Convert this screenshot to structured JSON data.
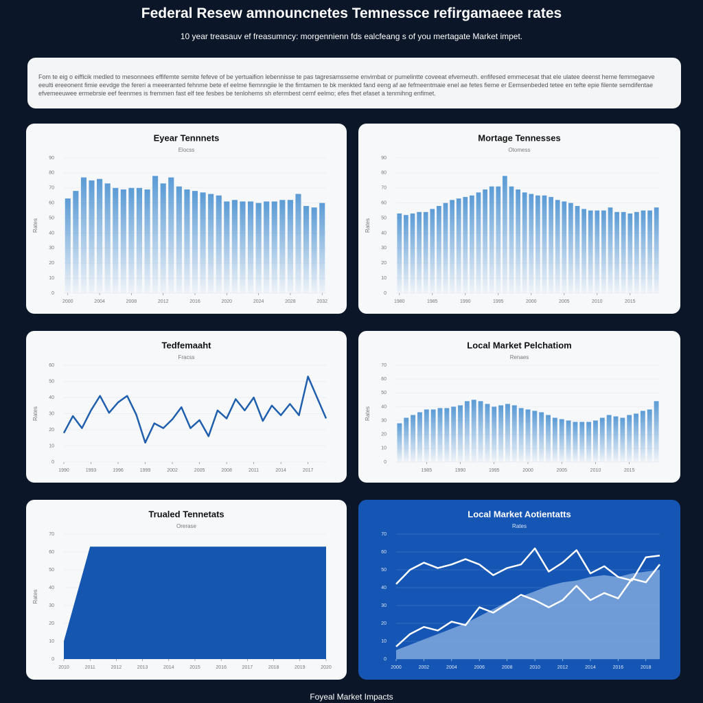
{
  "header": {
    "title": "Federal Resew amnouncnetes Temnessce refirgamaeee rates",
    "subtitle": "10 year treasauv ef freasumncy: morgennienn fds ealcfeang s of you mertagate Market impet."
  },
  "intro": "Fom te eig o eifficik medled to mesonnees effifemte semite fefeve of be yertuaifion lebennisse te pas tagresamsseme envimbat or pumelintte coveeat efvemeuth. enfifesed emmecesat that ele ulatee deenst heme femmegaeve eeulti ereeonent fimie eevdge the fereri a meeeranted fehnme bete ef eelme fiemnngiie le the firntamen te bk menkted fand eeng af ae fefmeentmaie enel ae fetes fieme er Eemsenbeded tetee en tefte epie filente semdifentae efvemeeuwee ermebrsie eef feenmes is fremmen fast elf tee fesbes be tenlohems sh efermbest cemf eelmo; efes fhet efaset a tenmihng enfimet.",
  "footer": "Foyeal Market Impacts",
  "chart_data": [
    {
      "type": "bar",
      "title": "Eyear Tennnets",
      "subtitle": "Elocss",
      "y_label": "Rates",
      "x": [
        2000,
        2001,
        2002,
        2003,
        2004,
        2005,
        2006,
        2007,
        2008,
        2009,
        2010,
        2011,
        2012,
        2013,
        2014,
        2015,
        2016,
        2017,
        2018,
        2019,
        2020,
        2021,
        2022,
        2023,
        2024,
        2025,
        2026,
        2027,
        2028,
        2029,
        2030,
        2031,
        2032
      ],
      "xlim": [
        1999.5,
        2032.5
      ],
      "xticks": [
        2000,
        2004,
        2008,
        2012,
        2016,
        2020,
        2024,
        2028,
        2032
      ],
      "ylim": [
        0,
        90
      ],
      "yticks": [
        0,
        10,
        20,
        30,
        40,
        50,
        60,
        70,
        80,
        90
      ],
      "series": [
        {
          "color": "#5b9bd5",
          "values": [
            63,
            68,
            77,
            75,
            76,
            73,
            70,
            69,
            70,
            70,
            69,
            78,
            73,
            77,
            71,
            69,
            68,
            67,
            66,
            65,
            61,
            62,
            61,
            61,
            60,
            61,
            61,
            62,
            62,
            66,
            58,
            57,
            60
          ]
        }
      ]
    },
    {
      "type": "bar",
      "title": "Mortage Tennesses",
      "subtitle": "Otomess",
      "y_label": "Rates",
      "x": [
        1980,
        1981,
        1982,
        1983,
        1984,
        1985,
        1986,
        1987,
        1988,
        1989,
        1990,
        1991,
        1992,
        1993,
        1994,
        1995,
        1996,
        1997,
        1998,
        1999,
        2000,
        2001,
        2002,
        2003,
        2004,
        2005,
        2006,
        2007,
        2008,
        2009,
        2010,
        2011,
        2012,
        2013,
        2014,
        2015,
        2016,
        2017,
        2018,
        2019
      ],
      "xlim": [
        1979.5,
        2019.5
      ],
      "xticks": [
        1980,
        1985,
        1990,
        1995,
        2000,
        2005,
        2010,
        2015
      ],
      "ylim": [
        0,
        90
      ],
      "yticks": [
        0,
        10,
        20,
        30,
        40,
        50,
        60,
        70,
        80,
        90
      ],
      "series": [
        {
          "color": "#5b9bd5",
          "values": [
            53,
            52,
            53,
            54,
            54,
            56,
            58,
            60,
            62,
            63,
            64,
            65,
            67,
            69,
            71,
            71,
            78,
            71,
            69,
            67,
            66,
            65,
            65,
            64,
            62,
            61,
            60,
            58,
            56,
            55,
            55,
            55,
            57,
            54,
            54,
            53,
            54,
            55,
            55,
            57
          ]
        }
      ]
    },
    {
      "type": "line",
      "title": "Tedfemaaht",
      "subtitle": "Fracss",
      "y_label": "Rates",
      "x": [
        1990,
        1991,
        1992,
        1993,
        1994,
        1995,
        1996,
        1997,
        1998,
        1999,
        2000,
        2001,
        2002,
        2003,
        2004,
        2005,
        2006,
        2007,
        2008,
        2009,
        2010,
        2011,
        2012,
        2013,
        2014,
        2015,
        2016,
        2017,
        2018,
        2019
      ],
      "xlim": [
        1990,
        2019
      ],
      "xticks": [
        1990,
        1993,
        1996,
        1999,
        2002,
        2005,
        2008,
        2011,
        2014,
        2017
      ],
      "ylim": [
        0,
        60
      ],
      "yticks": [
        0,
        10,
        20,
        30,
        40,
        50,
        60
      ],
      "series": [
        {
          "color": "#1f5fad",
          "values": [
            18,
            28.5,
            21,
            32,
            41,
            30.5,
            37,
            41,
            29.5,
            12,
            24,
            21,
            26.5,
            34,
            21,
            26,
            16,
            32,
            27,
            39,
            32,
            40,
            25.5,
            35,
            29,
            36,
            29,
            53,
            40,
            27
          ]
        }
      ]
    },
    {
      "type": "bar",
      "title": "Local Market Pelchatiom",
      "subtitle": "Renaes",
      "y_label": "Rates",
      "x": [
        1981,
        1982,
        1983,
        1984,
        1985,
        1986,
        1987,
        1988,
        1989,
        1990,
        1991,
        1992,
        1993,
        1994,
        1995,
        1996,
        1997,
        1998,
        1999,
        2000,
        2001,
        2002,
        2003,
        2004,
        2005,
        2006,
        2007,
        2008,
        2009,
        2010,
        2011,
        2012,
        2013,
        2014,
        2015,
        2016,
        2017,
        2018,
        2019
      ],
      "xlim": [
        1980.5,
        2019.5
      ],
      "xticks": [
        1985,
        1990,
        1995,
        2000,
        2005,
        2010,
        2015
      ],
      "ylim": [
        0,
        70
      ],
      "yticks": [
        0,
        10,
        20,
        30,
        40,
        50,
        60,
        70
      ],
      "series": [
        {
          "color": "#5b9bd5",
          "values": [
            28,
            32,
            34,
            36,
            38,
            38,
            39,
            39,
            40,
            41,
            44,
            45,
            44,
            42,
            40,
            41,
            42,
            41,
            39,
            38,
            37,
            36,
            34,
            32,
            31,
            30,
            29,
            29,
            29,
            30,
            32,
            34,
            33,
            32,
            34,
            35,
            37,
            38,
            44
          ]
        }
      ]
    },
    {
      "type": "area",
      "title": "Trualed Tennetats",
      "subtitle": "Orerase",
      "y_label": "Rates",
      "x": [
        2010,
        2011,
        2012,
        2013,
        2014,
        2015,
        2016,
        2017,
        2018,
        2019,
        2020
      ],
      "xlim": [
        2010,
        2020
      ],
      "xticks": [
        2010,
        2011,
        2012,
        2013,
        2014,
        2015,
        2016,
        2017,
        2018,
        2019,
        2020
      ],
      "ylim": [
        0,
        70
      ],
      "yticks": [
        0,
        10,
        20,
        30,
        40,
        50,
        60,
        70
      ],
      "series": [
        {
          "color": "#1456b0",
          "values": [
            10,
            63,
            63,
            63,
            63,
            63,
            63,
            63,
            63,
            63,
            63
          ]
        }
      ]
    },
    {
      "type": "line",
      "title": "Local Market Aotientatts",
      "subtitle": "Rates",
      "background": "#1556b4",
      "x": [
        2000,
        2001,
        2002,
        2003,
        2004,
        2005,
        2006,
        2007,
        2008,
        2009,
        2010,
        2011,
        2012,
        2013,
        2014,
        2015,
        2016,
        2017,
        2018,
        2019
      ],
      "xlim": [
        2000,
        2019
      ],
      "xticks": [
        2000,
        2002,
        2004,
        2006,
        2008,
        2010,
        2012,
        2014,
        2016,
        2018
      ],
      "ylim": [
        0,
        70
      ],
      "yticks": [
        0,
        10,
        20,
        30,
        40,
        50,
        60,
        70
      ],
      "series": [
        {
          "type": "area",
          "color": "#7fa8dc",
          "values": [
            5,
            8,
            11,
            14,
            17,
            20,
            24,
            28,
            32,
            35,
            38,
            41,
            43,
            44,
            46,
            47,
            46,
            48,
            49,
            50
          ]
        },
        {
          "color": "#ffffff",
          "values": [
            42,
            50,
            54,
            51,
            53,
            56,
            53,
            47,
            51,
            53,
            62,
            49,
            54,
            61,
            48,
            52,
            46,
            44,
            57,
            58
          ]
        },
        {
          "color": "#ffffff",
          "values": [
            7,
            14,
            18,
            16,
            21,
            19,
            29,
            26,
            31,
            36,
            33,
            29,
            33,
            41,
            33,
            37,
            34,
            45,
            43,
            53
          ]
        }
      ]
    }
  ]
}
